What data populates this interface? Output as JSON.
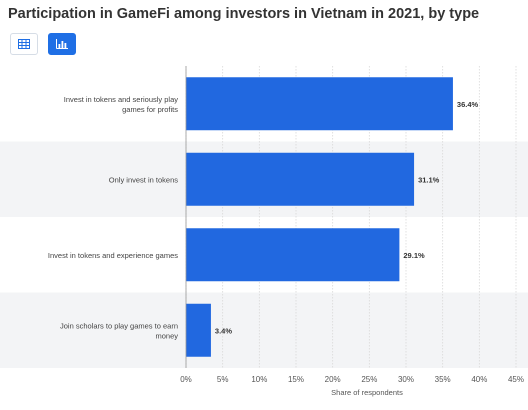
{
  "title": "Participation in GameFi among investors in Vietnam in 2021, by type",
  "toggles": {
    "table_icon": "table-icon",
    "chart_icon": "bar-chart-icon"
  },
  "colors": {
    "bar": "#2168e0",
    "band": "#f3f4f6",
    "grid": "#d9d9d9",
    "toggle_active": "#1f6fe5"
  },
  "chart_data": {
    "type": "bar",
    "orientation": "horizontal",
    "categories": [
      [
        "Invest in tokens and seriously play",
        "games for profits"
      ],
      [
        "Only invest in tokens"
      ],
      [
        "Invest in tokens and experience games"
      ],
      [
        "Join scholars to play games to earn",
        "money"
      ]
    ],
    "values": [
      36.4,
      31.1,
      29.1,
      3.4
    ],
    "value_labels": [
      "36.4%",
      "31.1%",
      "29.1%",
      "3.4%"
    ],
    "xlim": [
      0,
      45
    ],
    "xticks": [
      0,
      5,
      10,
      15,
      20,
      25,
      30,
      35,
      40,
      45
    ],
    "tick_suffix": "%",
    "xlabel": "Share of respondents",
    "grid": true
  }
}
